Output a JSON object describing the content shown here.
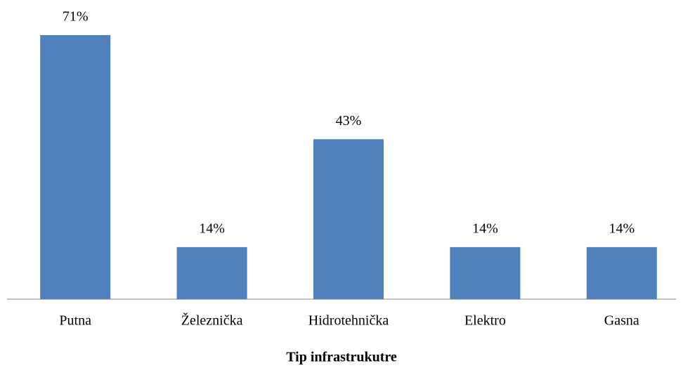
{
  "chart_data": {
    "type": "bar",
    "categories": [
      "Putna",
      "Železnička",
      "Hidrotehnička",
      "Elektro",
      "Gasna"
    ],
    "values": [
      71,
      14,
      43,
      14,
      14
    ],
    "value_labels": [
      "71%",
      "14%",
      "43%",
      "14%",
      "14%"
    ],
    "color": "#4f81bd",
    "x_label": "Tip infrastrukutre"
  }
}
